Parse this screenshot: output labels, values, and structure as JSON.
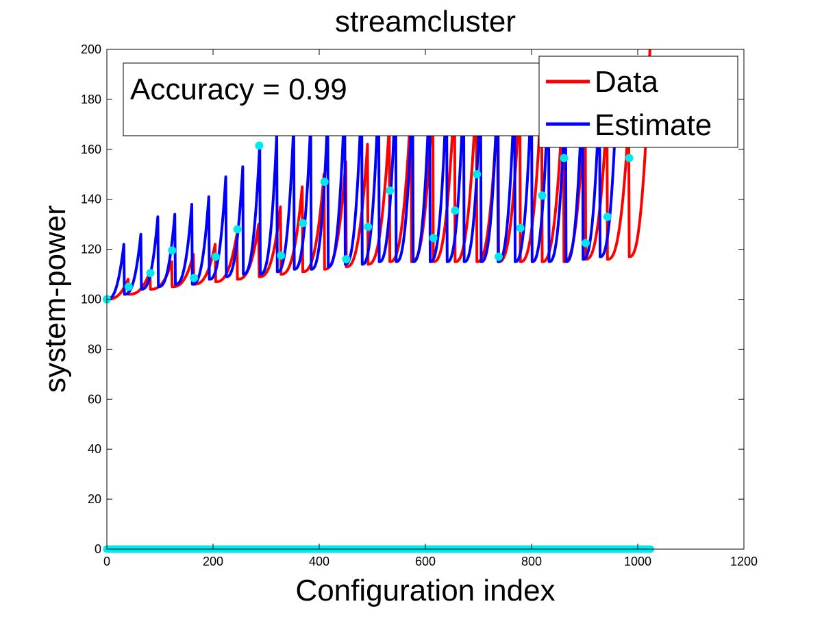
{
  "chart_data": {
    "type": "line",
    "title": "streamcluster",
    "xlabel": "Configuration index",
    "ylabel": "system-power",
    "xlim": [
      0,
      1200
    ],
    "ylim": [
      0,
      200
    ],
    "xticks": [
      0,
      200,
      400,
      600,
      800,
      1000,
      1200
    ],
    "yticks": [
      0,
      20,
      40,
      60,
      80,
      100,
      120,
      140,
      160,
      180,
      200
    ],
    "grid": false,
    "legend_position": "top-right",
    "annotation": "Accuracy = 0.99",
    "series": [
      {
        "name": "Data",
        "color": "#ff0000",
        "segments": [
          {
            "x0": 0,
            "x1": 40,
            "y_start": 100,
            "y_end": 108
          },
          {
            "x0": 41,
            "x1": 81,
            "y_start": 102,
            "y_end": 111
          },
          {
            "x0": 82,
            "x1": 122,
            "y_start": 104,
            "y_end": 115
          },
          {
            "x0": 123,
            "x1": 163,
            "y_start": 105,
            "y_end": 118
          },
          {
            "x0": 164,
            "x1": 204,
            "y_start": 106,
            "y_end": 122
          },
          {
            "x0": 205,
            "x1": 245,
            "y_start": 107,
            "y_end": 126
          },
          {
            "x0": 246,
            "x1": 286,
            "y_start": 108,
            "y_end": 130
          },
          {
            "x0": 287,
            "x1": 327,
            "y_start": 109,
            "y_end": 137
          },
          {
            "x0": 328,
            "x1": 368,
            "y_start": 110,
            "y_end": 145
          },
          {
            "x0": 369,
            "x1": 409,
            "y_start": 111,
            "y_end": 150
          },
          {
            "x0": 410,
            "x1": 450,
            "y_start": 112,
            "y_end": 155
          },
          {
            "x0": 451,
            "x1": 491,
            "y_start": 113,
            "y_end": 162
          },
          {
            "x0": 492,
            "x1": 532,
            "y_start": 114,
            "y_end": 170
          },
          {
            "x0": 533,
            "x1": 573,
            "y_start": 115,
            "y_end": 178
          },
          {
            "x0": 574,
            "x1": 614,
            "y_start": 115,
            "y_end": 182
          },
          {
            "x0": 615,
            "x1": 655,
            "y_start": 115,
            "y_end": 183
          },
          {
            "x0": 656,
            "x1": 696,
            "y_start": 115,
            "y_end": 183
          },
          {
            "x0": 697,
            "x1": 737,
            "y_start": 115,
            "y_end": 183
          },
          {
            "x0": 738,
            "x1": 778,
            "y_start": 115,
            "y_end": 183
          },
          {
            "x0": 779,
            "x1": 819,
            "y_start": 115,
            "y_end": 183
          },
          {
            "x0": 820,
            "x1": 860,
            "y_start": 115,
            "y_end": 183
          },
          {
            "x0": 861,
            "x1": 901,
            "y_start": 115,
            "y_end": 183
          },
          {
            "x0": 902,
            "x1": 942,
            "y_start": 116,
            "y_end": 175
          },
          {
            "x0": 943,
            "x1": 983,
            "y_start": 116,
            "y_end": 172
          },
          {
            "x0": 984,
            "x1": 1023,
            "y_start": 117,
            "y_end": 200
          }
        ]
      },
      {
        "name": "Estimate",
        "color": "#0000ff",
        "segments": [
          {
            "x0": 0,
            "x1": 32,
            "y_start": 100,
            "y_end": 122
          },
          {
            "x0": 33,
            "x1": 64,
            "y_start": 102,
            "y_end": 126
          },
          {
            "x0": 65,
            "x1": 96,
            "y_start": 104,
            "y_end": 133
          },
          {
            "x0": 97,
            "x1": 128,
            "y_start": 105,
            "y_end": 134
          },
          {
            "x0": 129,
            "x1": 160,
            "y_start": 106,
            "y_end": 138
          },
          {
            "x0": 161,
            "x1": 192,
            "y_start": 106,
            "y_end": 141
          },
          {
            "x0": 193,
            "x1": 224,
            "y_start": 108,
            "y_end": 149
          },
          {
            "x0": 225,
            "x1": 256,
            "y_start": 109,
            "y_end": 153
          },
          {
            "x0": 257,
            "x1": 288,
            "y_start": 110,
            "y_end": 162
          },
          {
            "x0": 289,
            "x1": 320,
            "y_start": 110,
            "y_end": 166
          },
          {
            "x0": 321,
            "x1": 352,
            "y_start": 111,
            "y_end": 170
          },
          {
            "x0": 353,
            "x1": 384,
            "y_start": 112,
            "y_end": 171
          },
          {
            "x0": 385,
            "x1": 416,
            "y_start": 112,
            "y_end": 174
          },
          {
            "x0": 417,
            "x1": 448,
            "y_start": 113,
            "y_end": 180
          },
          {
            "x0": 449,
            "x1": 480,
            "y_start": 114,
            "y_end": 182
          },
          {
            "x0": 481,
            "x1": 512,
            "y_start": 114,
            "y_end": 184
          },
          {
            "x0": 513,
            "x1": 544,
            "y_start": 115,
            "y_end": 184
          },
          {
            "x0": 545,
            "x1": 576,
            "y_start": 115,
            "y_end": 184
          },
          {
            "x0": 577,
            "x1": 608,
            "y_start": 115,
            "y_end": 184
          },
          {
            "x0": 609,
            "x1": 640,
            "y_start": 115,
            "y_end": 184
          },
          {
            "x0": 641,
            "x1": 672,
            "y_start": 115,
            "y_end": 184
          },
          {
            "x0": 673,
            "x1": 704,
            "y_start": 115,
            "y_end": 184
          },
          {
            "x0": 705,
            "x1": 736,
            "y_start": 115,
            "y_end": 184
          },
          {
            "x0": 737,
            "x1": 768,
            "y_start": 115,
            "y_end": 184
          },
          {
            "x0": 769,
            "x1": 800,
            "y_start": 115,
            "y_end": 185
          },
          {
            "x0": 801,
            "x1": 832,
            "y_start": 115,
            "y_end": 185
          },
          {
            "x0": 833,
            "x1": 864,
            "y_start": 115,
            "y_end": 184
          },
          {
            "x0": 865,
            "x1": 896,
            "y_start": 115,
            "y_end": 184
          },
          {
            "x0": 897,
            "x1": 928,
            "y_start": 116,
            "y_end": 182
          },
          {
            "x0": 929,
            "x1": 960,
            "y_start": 117,
            "y_end": 180
          }
        ]
      }
    ],
    "markers": {
      "color": "#00e8ee",
      "points": [
        [
          0,
          100
        ],
        [
          41,
          105
        ],
        [
          82,
          110.5
        ],
        [
          123,
          119.5
        ],
        [
          164,
          108.5
        ],
        [
          205,
          117
        ],
        [
          246,
          128
        ],
        [
          287,
          161.5
        ],
        [
          328,
          117.5
        ],
        [
          369,
          130.5
        ],
        [
          410,
          147
        ],
        [
          451,
          116
        ],
        [
          492,
          129
        ],
        [
          533,
          143.5
        ],
        [
          574,
          183
        ],
        [
          615,
          124.5
        ],
        [
          656,
          135.5
        ],
        [
          697,
          150
        ],
        [
          738,
          117
        ],
        [
          779,
          128.5
        ],
        [
          820,
          141.5
        ],
        [
          861,
          156.5
        ],
        [
          902,
          122.5
        ],
        [
          943,
          133
        ],
        [
          984,
          156.5
        ]
      ],
      "baseline": {
        "y": 0,
        "x_from": 0,
        "x_to": 1024
      }
    }
  }
}
